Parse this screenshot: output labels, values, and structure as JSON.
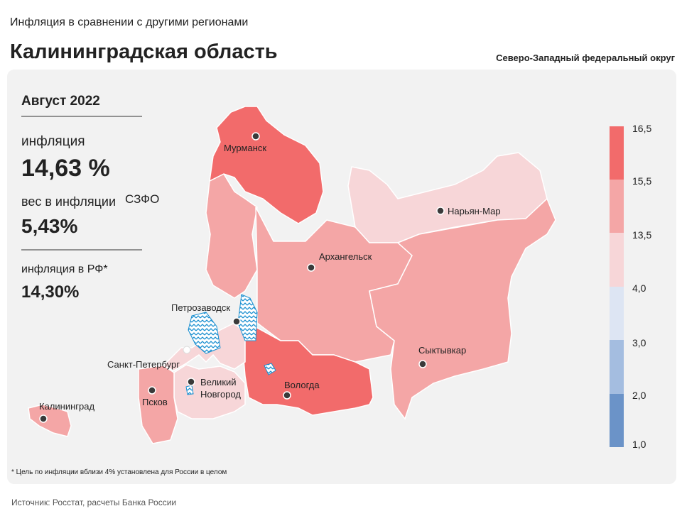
{
  "header": {
    "subtitle": "Инфляция в сравнении с другими регионами",
    "title": "Калининградская область",
    "district": "Северо-Западный федеральный округ"
  },
  "panel": {
    "period": "Август 2022",
    "inflation_label": "инфляция",
    "inflation_value": "14,63 %",
    "weight_label": "вес в инфляции",
    "weight_region": "СЗФО",
    "weight_value": "5,43%",
    "rf_label": "инфляция  в РФ*",
    "rf_value": "14,30%"
  },
  "map": {
    "cities": [
      "Мурманск",
      "Нарьян-Мар",
      "Архангельск",
      "Петрозаводск",
      "Санкт-Петербург",
      "Великий Новгород",
      "Вологда",
      "Сыктывкар",
      "Псков",
      "Калининград"
    ]
  },
  "legend": {
    "ticks": [
      "16,5",
      "15,5",
      "13,5",
      "4,0",
      "3,0",
      "2,0",
      "1,0"
    ]
  },
  "footnote": "* Цель по инфляции вблизи 4% установлена для России в целом",
  "source": "Источник: Росстат, расчеты Банка России"
}
